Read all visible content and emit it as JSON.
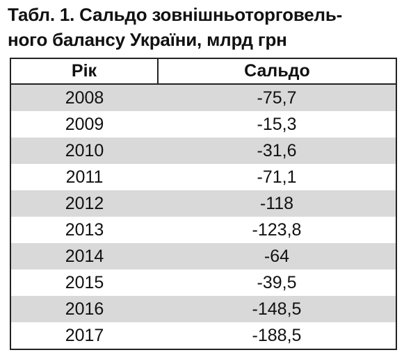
{
  "caption": {
    "line1": "Табл. 1. Сальдо зовнішньоторговель-",
    "line2": "ного балансу України, млрд грн"
  },
  "table": {
    "headers": {
      "year": "Рік",
      "balance": "Сальдо"
    },
    "rows": [
      {
        "year": "2008",
        "balance": "-75,7"
      },
      {
        "year": "2009",
        "balance": "-15,3"
      },
      {
        "year": "2010",
        "balance": "-31,6"
      },
      {
        "year": "2011",
        "balance": "-71,1"
      },
      {
        "year": "2012",
        "balance": "-118"
      },
      {
        "year": "2013",
        "balance": "-123,8"
      },
      {
        "year": "2014",
        "balance": "-64"
      },
      {
        "year": "2015",
        "balance": "-39,5"
      },
      {
        "year": "2016",
        "balance": "-148,5"
      },
      {
        "year": "2017",
        "balance": "-188,5"
      }
    ]
  },
  "colors": {
    "shaded_row": "#d9d9d9",
    "border": "#222222",
    "text": "#111111"
  }
}
